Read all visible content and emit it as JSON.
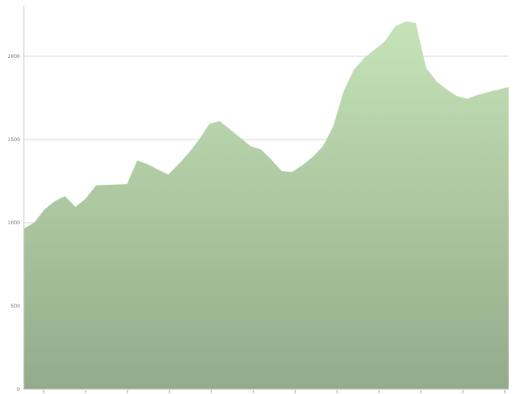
{
  "chart_data": {
    "type": "area",
    "title": "",
    "xlabel": "",
    "ylabel": "",
    "ylim": [
      0,
      2300
    ],
    "grid": true,
    "legend": "none",
    "fill_top": "#c6e3b8",
    "fill_bottom": "#93ab8a",
    "y_ticks": [
      {
        "value": 0,
        "label": "0"
      },
      {
        "value": 500,
        "label": "500"
      },
      {
        "value": 1000,
        "label": "1000"
      },
      {
        "value": 1500,
        "label": "1500"
      },
      {
        "value": 2000,
        "label": "2000"
      }
    ],
    "gridlines": [
      500,
      1000,
      1500,
      2000
    ],
    "x": [
      1,
      2,
      3,
      4,
      5,
      6,
      7,
      8,
      9,
      10,
      11,
      12,
      13,
      14,
      15,
      16,
      17,
      18,
      19,
      20,
      21,
      22,
      23,
      24,
      25,
      26,
      27,
      28,
      29,
      30,
      31,
      32,
      33,
      34,
      35,
      36,
      37,
      38,
      39,
      40,
      41,
      42,
      43,
      44,
      45,
      46,
      47,
      48
    ],
    "series": [
      {
        "values": [
          965,
          1000,
          1080,
          1130,
          1160,
          1095,
          1145,
          1225,
          1228,
          1230,
          1232,
          1375,
          1352,
          1320,
          1290,
          1352,
          1420,
          1500,
          1595,
          1610,
          1560,
          1510,
          1460,
          1440,
          1380,
          1310,
          1305,
          1345,
          1395,
          1460,
          1580,
          1790,
          1920,
          1990,
          2040,
          2090,
          2180,
          2210,
          2200,
          1930,
          1850,
          1800,
          1760,
          1745,
          1768,
          1785,
          1800,
          1815
        ]
      }
    ],
    "x_ticks_count": 12
  }
}
